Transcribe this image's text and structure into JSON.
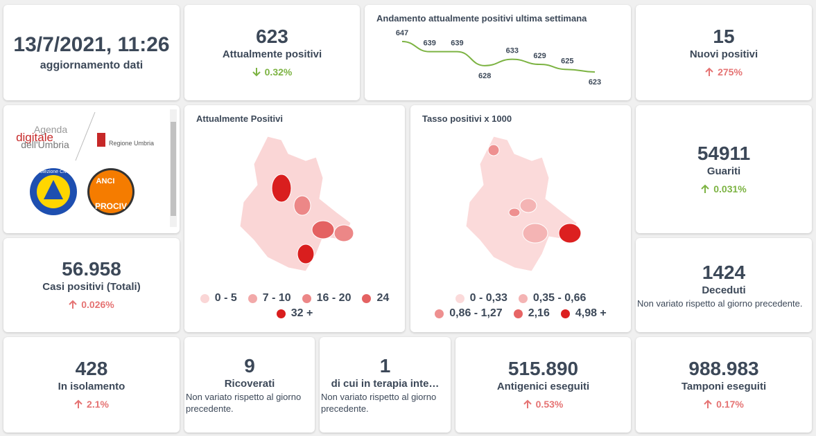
{
  "header": {
    "date": "13/7/2021, 11:26",
    "label": "aggiornamento dati"
  },
  "trend": {
    "title": "Andamento attualmente positivi ultima settimana",
    "values": [
      647,
      639,
      639,
      628,
      633,
      629,
      625,
      623
    ],
    "color": "#7cb342"
  },
  "cards": [
    {
      "value": "623",
      "label": "Attualmente positivi",
      "change": "0.32%",
      "direction": "down",
      "change_color": "#7cb342"
    },
    {
      "value": "15",
      "label": "Nuovi positivi",
      "change": "275%",
      "direction": "up",
      "change_color": "#e57373"
    },
    {
      "value": "54911",
      "label": "Guariti",
      "change": "0.031%",
      "direction": "up",
      "change_color": "#7cb342"
    },
    {
      "value": "56.958",
      "label": "Casi positivi (Totali)",
      "change": "0.026%",
      "direction": "up",
      "change_color": "#e57373"
    },
    {
      "value": "1424",
      "label": "Deceduti",
      "note": "Non variato rispetto al giorno precedente."
    },
    {
      "value": "428",
      "label": "In isolamento",
      "change": "2.1%",
      "direction": "up",
      "change_color": "#e57373"
    },
    {
      "value": "9",
      "label": "Ricoverati",
      "note": "Non variato rispetto al giorno precedente."
    },
    {
      "value": "1",
      "label": "di cui in terapia inte…",
      "note": "Non variato rispetto al giorno precedente."
    },
    {
      "value": "515.890",
      "label": "Antigenici eseguiti",
      "change": "0.53%",
      "direction": "up",
      "change_color": "#e57373"
    },
    {
      "value": "988.983",
      "label": "Tamponi eseguiti",
      "change": "0.17%",
      "direction": "up",
      "change_color": "#e57373"
    }
  ],
  "maps": [
    {
      "title": "Attualmente Positivi",
      "legend": [
        {
          "label": "0 - 5",
          "color": "#fad6d6"
        },
        {
          "label": "7 - 10",
          "color": "#f2a9a9"
        },
        {
          "label": "16 - 20",
          "color": "#ec8787"
        },
        {
          "label": "24",
          "color": "#e46262"
        },
        {
          "label": "32 +",
          "color": "#d91e1e"
        }
      ]
    },
    {
      "title": "Tasso positivi x 1000",
      "legend": [
        {
          "label": "0 - 0,33",
          "color": "#fbdada"
        },
        {
          "label": "0,35 - 0,66",
          "color": "#f4b4b4"
        },
        {
          "label": "0,86 - 1,27",
          "color": "#ee9090"
        },
        {
          "label": "2,16",
          "color": "#e76565"
        },
        {
          "label": "4,98 +",
          "color": "#dc2020"
        }
      ]
    }
  ],
  "logos": {
    "agenda": "Agenda",
    "digitale": "digitale",
    "umbria": "dell'Umbria",
    "regione": "Regione Umbria",
    "protezione": "Protezione Civile",
    "anci": "ANCI",
    "prociv": "PROCIV"
  }
}
